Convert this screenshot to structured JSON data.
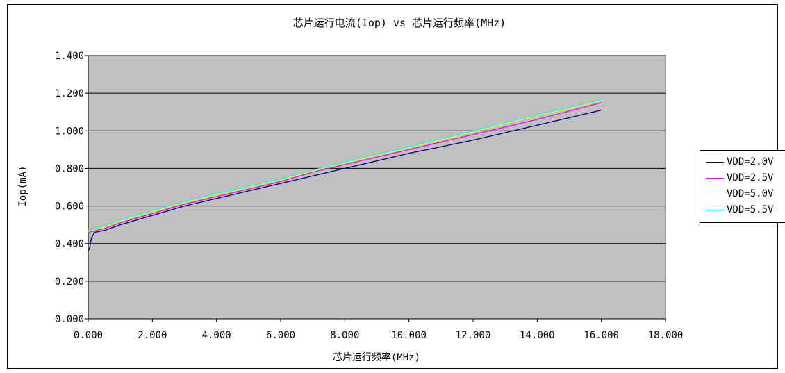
{
  "chart_data": {
    "type": "line",
    "title": "芯片运行电流(Iop) vs 芯片运行频率(MHz)",
    "xlabel": "芯片运行频率(MHz)",
    "ylabel": "Iop(mA)",
    "xlim": [
      0,
      18
    ],
    "ylim": [
      0,
      1.4
    ],
    "x_ticks": [
      "0.000",
      "2.000",
      "4.000",
      "6.000",
      "8.000",
      "10.000",
      "12.000",
      "14.000",
      "16.000",
      "18.000"
    ],
    "y_ticks": [
      "0.000",
      "0.200",
      "0.400",
      "0.600",
      "0.800",
      "1.000",
      "1.200",
      "1.400"
    ],
    "grid": "horizontal",
    "plot_background": "#c0c0c0",
    "legend_position": "right",
    "series": [
      {
        "name": "VDD=2.0V",
        "color": "#000080",
        "points": [
          [
            0.0,
            0.36
          ],
          [
            0.05,
            0.38
          ],
          [
            0.1,
            0.43
          ],
          [
            0.2,
            0.46
          ],
          [
            0.5,
            0.47
          ],
          [
            1.0,
            0.5
          ],
          [
            2.0,
            0.55
          ],
          [
            3.0,
            0.6
          ],
          [
            4.0,
            0.64
          ],
          [
            5.0,
            0.68
          ],
          [
            6.0,
            0.72
          ],
          [
            7.0,
            0.76
          ],
          [
            8.0,
            0.8
          ],
          [
            9.0,
            0.84
          ],
          [
            10.0,
            0.88
          ],
          [
            12.0,
            0.95
          ],
          [
            14.0,
            1.03
          ],
          [
            16.0,
            1.11
          ]
        ]
      },
      {
        "name": "VDD=2.5V",
        "color": "#ff00ff",
        "points": [
          [
            0.0,
            0.46
          ],
          [
            0.5,
            0.48
          ],
          [
            1.0,
            0.51
          ],
          [
            2.0,
            0.56
          ],
          [
            3.0,
            0.61
          ],
          [
            4.0,
            0.65
          ],
          [
            5.0,
            0.69
          ],
          [
            6.0,
            0.73
          ],
          [
            7.0,
            0.78
          ],
          [
            8.0,
            0.82
          ],
          [
            9.0,
            0.86
          ],
          [
            10.0,
            0.9
          ],
          [
            12.0,
            0.98
          ],
          [
            14.0,
            1.06
          ],
          [
            16.0,
            1.15
          ]
        ]
      },
      {
        "name": "VDD=5.0V",
        "color": "#ffff00",
        "points": [
          [
            0.0,
            0.465
          ],
          [
            0.5,
            0.49
          ],
          [
            1.0,
            0.52
          ],
          [
            2.0,
            0.57
          ],
          [
            3.0,
            0.62
          ],
          [
            4.0,
            0.66
          ],
          [
            5.0,
            0.7
          ],
          [
            6.0,
            0.74
          ],
          [
            7.0,
            0.785
          ],
          [
            8.0,
            0.83
          ],
          [
            9.0,
            0.87
          ],
          [
            10.0,
            0.91
          ],
          [
            12.0,
            0.995
          ],
          [
            14.0,
            1.08
          ],
          [
            16.0,
            1.16
          ]
        ]
      },
      {
        "name": "VDD=5.5V",
        "color": "#00ffff",
        "points": [
          [
            0.0,
            0.47
          ],
          [
            0.5,
            0.495
          ],
          [
            1.0,
            0.525
          ],
          [
            2.0,
            0.575
          ],
          [
            3.0,
            0.625
          ],
          [
            4.0,
            0.665
          ],
          [
            5.0,
            0.705
          ],
          [
            6.0,
            0.745
          ],
          [
            7.0,
            0.79
          ],
          [
            8.0,
            0.835
          ],
          [
            9.0,
            0.875
          ],
          [
            10.0,
            0.915
          ],
          [
            12.0,
            1.0
          ],
          [
            14.0,
            1.085
          ],
          [
            16.0,
            1.165
          ]
        ]
      }
    ]
  }
}
